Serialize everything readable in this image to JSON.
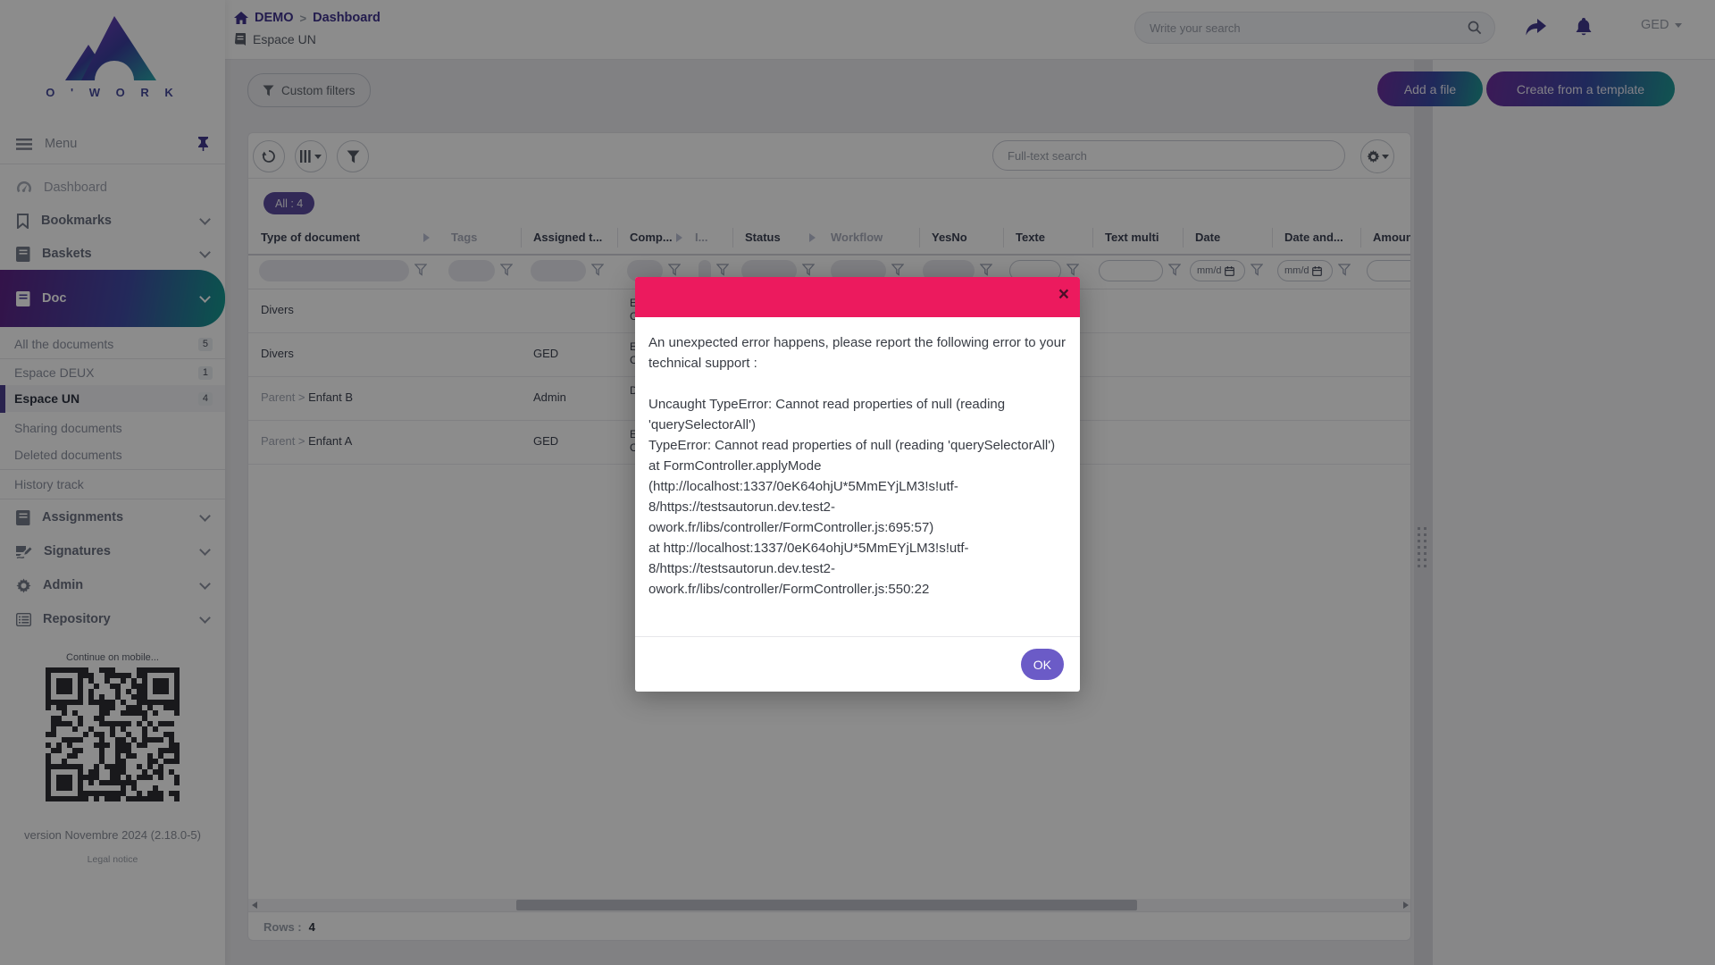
{
  "topbar": {
    "breadcrumb_home": "DEMO",
    "breadcrumb_sep": ">",
    "breadcrumb_page": "Dashboard",
    "breadcrumb_space": "Espace UN",
    "search_placeholder": "Write your search",
    "user_name": "GED"
  },
  "actions": {
    "custom_filters": "Custom filters",
    "add_file": "Add a file",
    "create_from_template": "Create from a template"
  },
  "sidebar": {
    "logo_text": "O ' W O R K",
    "menu": "Menu",
    "items": [
      {
        "label": "Dashboard"
      },
      {
        "label": "Bookmarks"
      },
      {
        "label": "Baskets"
      },
      {
        "label": "Doc"
      },
      {
        "label": "Assignments"
      },
      {
        "label": "Signatures"
      },
      {
        "label": "Admin"
      },
      {
        "label": "Repository"
      }
    ],
    "doc_children": [
      {
        "label": "All the documents",
        "count": "5"
      },
      {
        "label": "Espace DEUX",
        "count": "1"
      },
      {
        "label": "Espace UN",
        "count": "4"
      },
      {
        "label": "Sharing documents",
        "count": ""
      },
      {
        "label": "Deleted documents",
        "count": ""
      },
      {
        "label": "History track",
        "count": ""
      }
    ],
    "mobile_hint": "Continue on mobile...",
    "version": "version Novembre 2024 (2.18.0-5)",
    "legal": "Legal notice"
  },
  "table": {
    "scope_chip": "All : 4",
    "fulltext_placeholder": "Full-text search",
    "date_placeholder": "mm/d",
    "columns": [
      "Type of document",
      "Tags",
      "Assigned t...",
      "Comp...",
      "I...",
      "Status",
      "Workflow",
      "YesNo",
      "Texte",
      "Text multi",
      "Date",
      "Date and...",
      "Amount"
    ],
    "rows": [
      {
        "prefix": "",
        "name": "Divers",
        "assigned": "",
        "frag1": "E",
        "frag2": "C"
      },
      {
        "prefix": "",
        "name": "Divers",
        "assigned": "GED",
        "frag1": "E",
        "frag2": "C"
      },
      {
        "prefix": "Parent >",
        "name": "Enfant B",
        "assigned": "Admin",
        "frag1": "D",
        "frag2": ""
      },
      {
        "prefix": "Parent >",
        "name": "Enfant A",
        "assigned": "GED",
        "frag1": "E",
        "frag2": "C"
      }
    ],
    "footer_label": "Rows :",
    "footer_count": "4"
  },
  "modal": {
    "close": "×",
    "message": "An unexpected error happens, please report the following error to your technical support :",
    "details": "Uncaught TypeError: Cannot read properties of null (reading 'querySelectorAll')\nTypeError: Cannot read properties of null (reading 'querySelectorAll')\nat FormController.applyMode (http://localhost:1337/0eK64ohjU*5MmEYjLM3!s!utf-8/https://testsautorun.dev.test2-owork.fr/libs/controller/FormController.js:695:57)\nat http://localhost:1337/0eK64ohjU*5MmEYjLM3!s!utf-8/https://testsautorun.dev.test2-owork.fr/libs/controller/FormController.js:550:22",
    "ok": "OK"
  },
  "colors": {
    "modal_header": "#ec1a5e",
    "ok_button": "#6b5bc7",
    "brand_purple": "#5b4b9e",
    "brand_teal": "#1f9a94"
  }
}
